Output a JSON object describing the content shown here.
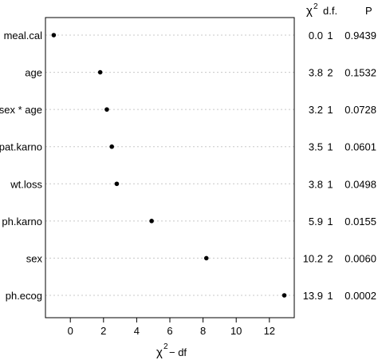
{
  "chart_data": {
    "type": "scatter",
    "xlabel_main": "χ",
    "xlabel_sup": "2",
    "xlabel_rest": "− df",
    "xlim": [
      -1.5,
      13.5
    ],
    "xticks": [
      0,
      2,
      4,
      6,
      8,
      10,
      12
    ],
    "grid": true,
    "header": {
      "chi_main": "χ",
      "chi_sup": "2",
      "df": "d.f.",
      "p": "P"
    },
    "rows": [
      {
        "label": "meal.cal",
        "x": -1.0,
        "chi2": "0.0",
        "df": "1",
        "p": "0.9439"
      },
      {
        "label": "age",
        "x": 1.8,
        "chi2": "3.8",
        "df": "2",
        "p": "0.1532"
      },
      {
        "label": "sex * age",
        "x": 2.2,
        "chi2": "3.2",
        "df": "1",
        "p": "0.0728"
      },
      {
        "label": "pat.karno",
        "x": 2.5,
        "chi2": "3.5",
        "df": "1",
        "p": "0.0601"
      },
      {
        "label": "wt.loss",
        "x": 2.8,
        "chi2": "3.8",
        "df": "1",
        "p": "0.0498"
      },
      {
        "label": "ph.karno",
        "x": 4.9,
        "chi2": "5.9",
        "df": "1",
        "p": "0.0155"
      },
      {
        "label": "sex",
        "x": 8.2,
        "chi2": "10.2",
        "df": "2",
        "p": "0.0060"
      },
      {
        "label": "ph.ecog",
        "x": 12.9,
        "chi2": "13.9",
        "df": "1",
        "p": "0.0002"
      }
    ]
  }
}
